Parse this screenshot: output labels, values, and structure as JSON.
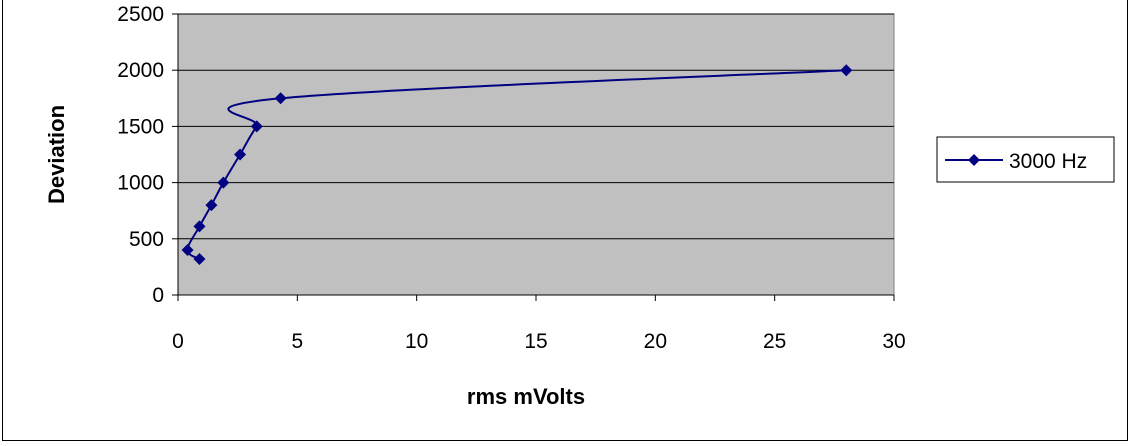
{
  "chart_data": {
    "type": "line",
    "title": "",
    "xlabel": "rms mVolts",
    "ylabel": "Deviation",
    "xlim": [
      0,
      30
    ],
    "ylim": [
      0,
      2500
    ],
    "x_ticks": [
      "0",
      "5",
      "10",
      "15",
      "20",
      "25",
      "30"
    ],
    "y_ticks": [
      "0",
      "500",
      "1000",
      "1500",
      "2000",
      "2500"
    ],
    "grid": true,
    "legend_position": "right",
    "plot_background": "#c0c0c0",
    "series_color": "#000080",
    "series": [
      {
        "name": "3000 Hz",
        "x": [
          0.9,
          0.4,
          0.9,
          1.4,
          1.9,
          2.6,
          3.3,
          4.3,
          28
        ],
        "y": [
          320,
          400,
          610,
          800,
          1000,
          1250,
          1500,
          1750,
          2000
        ]
      }
    ]
  }
}
